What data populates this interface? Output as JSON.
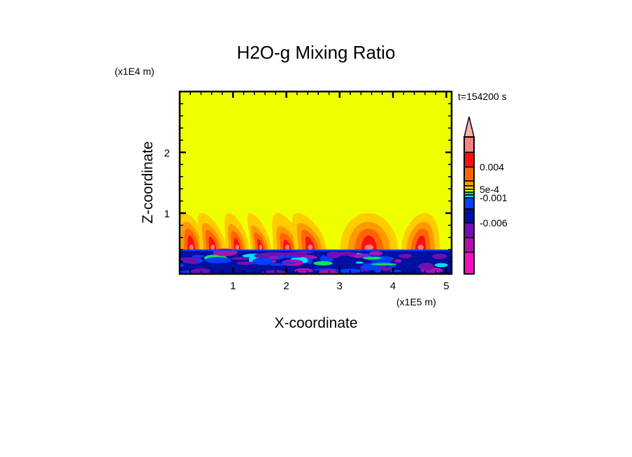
{
  "chart_data": {
    "type": "heatmap",
    "title": "H2O-g Mixing Ratio",
    "xlabel": "X-coordinate",
    "ylabel": "Z-coordinate",
    "x_unit": "(x1E5 m)",
    "y_unit": "(x1E4 m)",
    "time_label": "t=154200 s",
    "xlim": [
      0,
      5.1
    ],
    "ylim": [
      0,
      3.0
    ],
    "x_ticks": [
      {
        "v": 1,
        "label": "1"
      },
      {
        "v": 2,
        "label": "2"
      },
      {
        "v": 3,
        "label": "3"
      },
      {
        "v": 4,
        "label": "4"
      },
      {
        "v": 5,
        "label": "5"
      }
    ],
    "y_ticks": [
      {
        "v": 1,
        "label": "1"
      },
      {
        "v": 2,
        "label": "2"
      }
    ],
    "colorbar": {
      "labels": [
        {
          "label": "0.004",
          "band": 2
        },
        {
          "label": "5e-4",
          "band": 5
        },
        {
          "label": "-0.001",
          "band": 7
        },
        {
          "label": "-0.006",
          "band": 10
        }
      ],
      "bands": [
        "#ff8080",
        "#ff1010",
        "#ff6600",
        "#ff9900",
        "#ffcc00",
        "#f0ff00",
        "#10e060",
        "#00e0ff",
        "#0040ff",
        "#0010a0",
        "#7010b0",
        "#b010b0",
        "#f010c0"
      ],
      "overflow_color": "#ffb0b0"
    },
    "background_color": "#f0ff00",
    "moist_layer_top": 1.0,
    "dry_layer_top": 0.39,
    "plumes": [
      {
        "x": 0.22,
        "z": 0.52,
        "w": 0.22,
        "tilt": 0.35
      },
      {
        "x": 0.62,
        "z": 0.5,
        "w": 0.2,
        "tilt": 0.5
      },
      {
        "x": 1.08,
        "z": 0.48,
        "w": 0.18,
        "tilt": 0.4
      },
      {
        "x": 1.52,
        "z": 0.46,
        "w": 0.16,
        "tilt": 0.5
      },
      {
        "x": 2.02,
        "z": 0.45,
        "w": 0.22,
        "tilt": 0.45
      },
      {
        "x": 2.45,
        "z": 0.5,
        "w": 0.25,
        "tilt": 0.6
      },
      {
        "x": 3.55,
        "z": 0.52,
        "w": 0.45,
        "tilt": 0.05
      },
      {
        "x": 4.52,
        "z": 0.52,
        "w": 0.3,
        "tilt": -0.2
      }
    ]
  }
}
